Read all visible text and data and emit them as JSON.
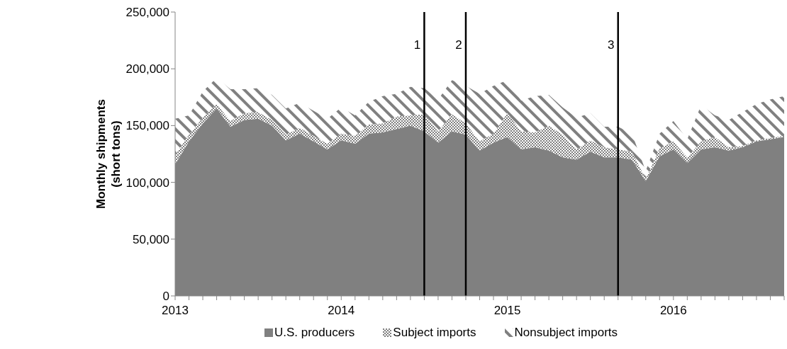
{
  "chart_data": {
    "type": "area",
    "stacked": true,
    "ylabel": "Monthly shipments (short tons)",
    "x": [
      "2013-01",
      "2013-02",
      "2013-03",
      "2013-04",
      "2013-05",
      "2013-06",
      "2013-07",
      "2013-08",
      "2013-09",
      "2013-10",
      "2013-11",
      "2013-12",
      "2014-01",
      "2014-02",
      "2014-03",
      "2014-04",
      "2014-05",
      "2014-06",
      "2014-07",
      "2014-08",
      "2014-09",
      "2014-10",
      "2014-11",
      "2014-12",
      "2015-01",
      "2015-02",
      "2015-03",
      "2015-04",
      "2015-05",
      "2015-06",
      "2015-07",
      "2015-08",
      "2015-09",
      "2015-10",
      "2015-11",
      "2015-12",
      "2016-01",
      "2016-02",
      "2016-03",
      "2016-04",
      "2016-05",
      "2016-06",
      "2016-07",
      "2016-08",
      "2016-09"
    ],
    "series": [
      {
        "name": "U.S. producers",
        "color": "#808080",
        "values": [
          116000,
          136000,
          152000,
          165000,
          149000,
          155000,
          156000,
          150000,
          137000,
          143000,
          136000,
          129000,
          137000,
          134000,
          143000,
          144000,
          147000,
          150000,
          145000,
          135000,
          145000,
          142000,
          128000,
          135000,
          140000,
          129000,
          131000,
          128000,
          122000,
          120000,
          127000,
          122000,
          122000,
          120000,
          101000,
          123000,
          129000,
          117000,
          129000,
          131000,
          128000,
          131000,
          136000,
          138000,
          140000
        ]
      },
      {
        "name": "Subject imports",
        "color": "#808080",
        "values": [
          8000,
          6000,
          5000,
          4000,
          5000,
          6000,
          6000,
          5000,
          5000,
          5000,
          5000,
          5000,
          6000,
          7000,
          8000,
          8000,
          11000,
          9000,
          15000,
          10000,
          15000,
          10000,
          8000,
          8000,
          21000,
          16000,
          13000,
          22000,
          20000,
          9000,
          10000,
          9000,
          7000,
          7000,
          2000,
          7000,
          7000,
          5000,
          7000,
          9000,
          3000,
          1000,
          1000,
          1000,
          1000
        ]
      },
      {
        "name": "Nonsubject imports",
        "color": "#808080",
        "values": [
          32000,
          17000,
          23000,
          23000,
          28000,
          21000,
          21000,
          22000,
          23000,
          22000,
          22000,
          22000,
          23000,
          18000,
          20000,
          24000,
          20000,
          25000,
          23000,
          28000,
          30000,
          33000,
          42000,
          42000,
          29000,
          27000,
          32000,
          27000,
          24000,
          28000,
          24000,
          18000,
          20000,
          16000,
          7000,
          13000,
          18000,
          16000,
          32000,
          19000,
          24000,
          30000,
          32000,
          34000,
          35000
        ]
      }
    ],
    "xlim": [
      "2013-01",
      "2016-09"
    ],
    "xticks": [
      {
        "value": "2013-01",
        "label": "2013"
      },
      {
        "value": "2013-02",
        "label": null
      },
      {
        "value": "2013-03",
        "label": null
      },
      {
        "value": "2013-04",
        "label": null
      },
      {
        "value": "2013-05",
        "label": null
      },
      {
        "value": "2013-06",
        "label": null
      },
      {
        "value": "2013-07",
        "label": null
      },
      {
        "value": "2013-08",
        "label": null
      },
      {
        "value": "2013-09",
        "label": null
      },
      {
        "value": "2013-10",
        "label": null
      },
      {
        "value": "2013-11",
        "label": null
      },
      {
        "value": "2013-12",
        "label": null
      },
      {
        "value": "2014-01",
        "label": "2014"
      },
      {
        "value": "2014-02",
        "label": null
      },
      {
        "value": "2014-03",
        "label": null
      },
      {
        "value": "2014-04",
        "label": null
      },
      {
        "value": "2014-05",
        "label": null
      },
      {
        "value": "2014-06",
        "label": null
      },
      {
        "value": "2014-07",
        "label": null
      },
      {
        "value": "2014-08",
        "label": null
      },
      {
        "value": "2014-09",
        "label": null
      },
      {
        "value": "2014-10",
        "label": null
      },
      {
        "value": "2014-11",
        "label": null
      },
      {
        "value": "2014-12",
        "label": null
      },
      {
        "value": "2015-01",
        "label": "2015"
      },
      {
        "value": "2015-02",
        "label": null
      },
      {
        "value": "2015-03",
        "label": null
      },
      {
        "value": "2015-04",
        "label": null
      },
      {
        "value": "2015-05",
        "label": null
      },
      {
        "value": "2015-06",
        "label": null
      },
      {
        "value": "2015-07",
        "label": null
      },
      {
        "value": "2015-08",
        "label": null
      },
      {
        "value": "2015-09",
        "label": null
      },
      {
        "value": "2015-10",
        "label": null
      },
      {
        "value": "2015-11",
        "label": null
      },
      {
        "value": "2015-12",
        "label": null
      },
      {
        "value": "2016-01",
        "label": "2016"
      },
      {
        "value": "2016-02",
        "label": null
      },
      {
        "value": "2016-03",
        "label": null
      },
      {
        "value": "2016-04",
        "label": null
      },
      {
        "value": "2016-05",
        "label": null
      },
      {
        "value": "2016-06",
        "label": null
      },
      {
        "value": "2016-07",
        "label": null
      },
      {
        "value": "2016-08",
        "label": null
      },
      {
        "value": "2016-09",
        "label": null
      }
    ],
    "ylim": [
      0,
      250000
    ],
    "yticks": [
      0,
      {
        "value": 50000,
        "label": "50,000"
      },
      {
        "value": 100000,
        "label": "100,000"
      },
      {
        "value": 150000,
        "label": "150,000"
      },
      {
        "value": 200000,
        "label": "200,000"
      },
      {
        "value": 250000,
        "label": "250,000"
      }
    ],
    "ref_lines": [
      {
        "axis": "x",
        "value": "2014-07",
        "label": "1",
        "color": "#000000"
      },
      {
        "axis": "x",
        "value": "2014-10",
        "label": "2",
        "color": "#000000"
      },
      {
        "axis": "x",
        "value": "2015-09",
        "label": "3",
        "color": "#000000"
      }
    ],
    "grid": false,
    "legend": "bottom"
  }
}
